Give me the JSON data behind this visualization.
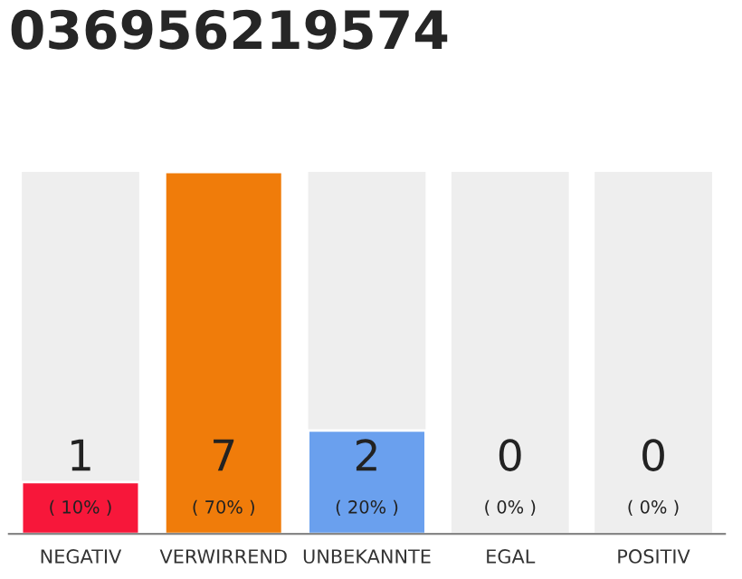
{
  "chart_data": {
    "type": "bar",
    "title": "036956219574",
    "categories": [
      "NEGATIV",
      "VERWIRREND",
      "UNBEKANNTE",
      "EGAL",
      "POSITIV"
    ],
    "values": [
      1,
      7,
      2,
      0,
      0
    ],
    "colors": [
      "#f7173a",
      "#f07c0a",
      "#6aa0ee",
      null,
      null
    ],
    "ylim": [
      0,
      7
    ],
    "tick_labels": "x",
    "data_labels": true,
    "grid": false,
    "legend": false,
    "annotations": [
      "( 10% )",
      "( 70% )",
      "( 20% )",
      "( 0% )",
      "( 0% )"
    ]
  }
}
